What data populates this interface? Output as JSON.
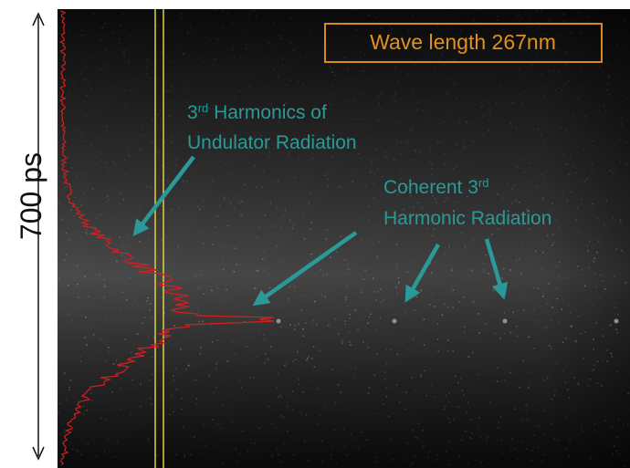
{
  "scale_label": "700 ps",
  "wavelength_box": "Wave length 267nm",
  "annotations": [
    {
      "lines": [
        [
          "3",
          "rd",
          " Harmonics of"
        ],
        [
          "Undulator Radiation"
        ]
      ]
    },
    {
      "lines": [
        [
          "Coherent 3",
          "rd",
          ""
        ],
        [
          "Harmonic Radiation"
        ]
      ]
    }
  ]
}
